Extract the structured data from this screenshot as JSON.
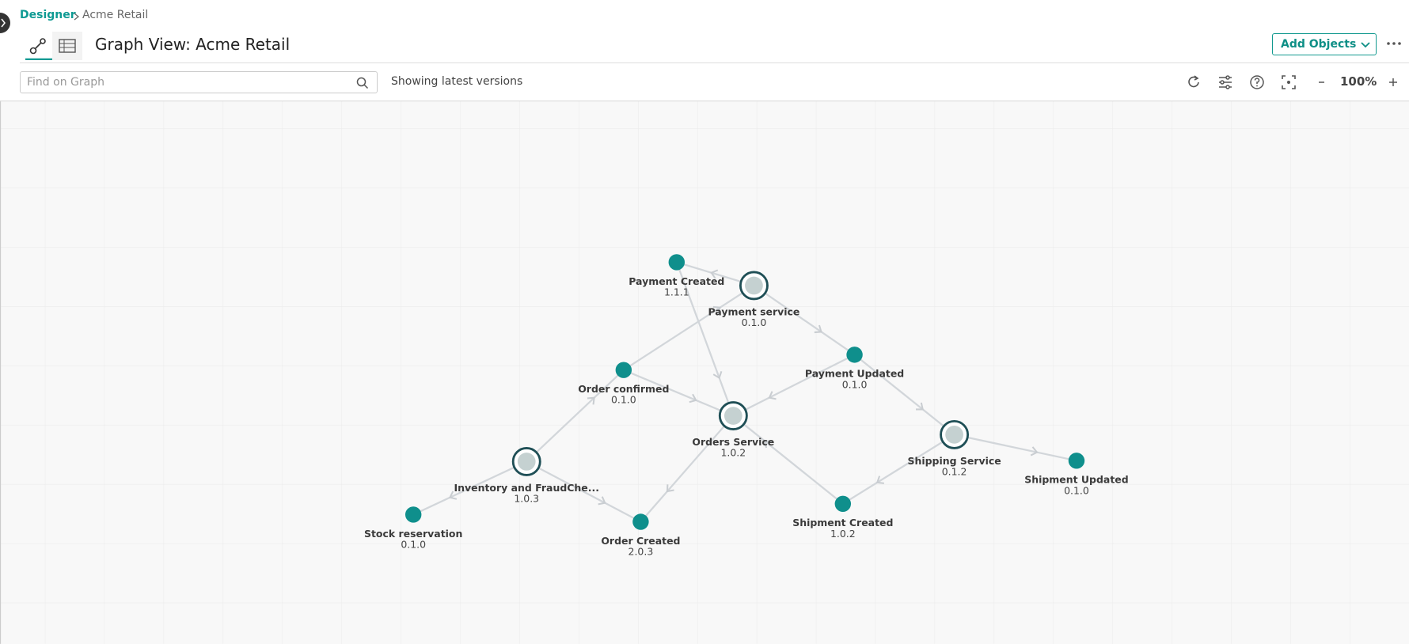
{
  "header": {
    "breadcrumb": [
      "Designer",
      "Acme Retail"
    ],
    "title": "Graph View: Acme Retail",
    "add_button": "Add Objects"
  },
  "toolbar": {
    "search_placeholder": "Find on Graph",
    "status": "Showing latest versions",
    "zoom": "100%"
  },
  "graph": {
    "nodes": [
      {
        "label": "Payment Created",
        "version": "1.1.1",
        "kind": "event"
      },
      {
        "label": "Payment service",
        "version": "0.1.0",
        "kind": "service"
      },
      {
        "label": "Order confirmed",
        "version": "0.1.0",
        "kind": "event"
      },
      {
        "label": "Payment Updated",
        "version": "0.1.0",
        "kind": "event"
      },
      {
        "label": "Orders Service",
        "version": "1.0.2",
        "kind": "service"
      },
      {
        "label": "Shipping Service",
        "version": "0.1.2",
        "kind": "service"
      },
      {
        "label": "Shipment Updated",
        "version": "0.1.0",
        "kind": "event"
      },
      {
        "label": "Inventory and FraudChe...",
        "version": "1.0.3",
        "kind": "service"
      },
      {
        "label": "Stock reservation",
        "version": "0.1.0",
        "kind": "event"
      },
      {
        "label": "Order Created",
        "version": "2.0.3",
        "kind": "event"
      },
      {
        "label": "Shipment Created",
        "version": "1.0.2",
        "kind": "event"
      }
    ]
  }
}
